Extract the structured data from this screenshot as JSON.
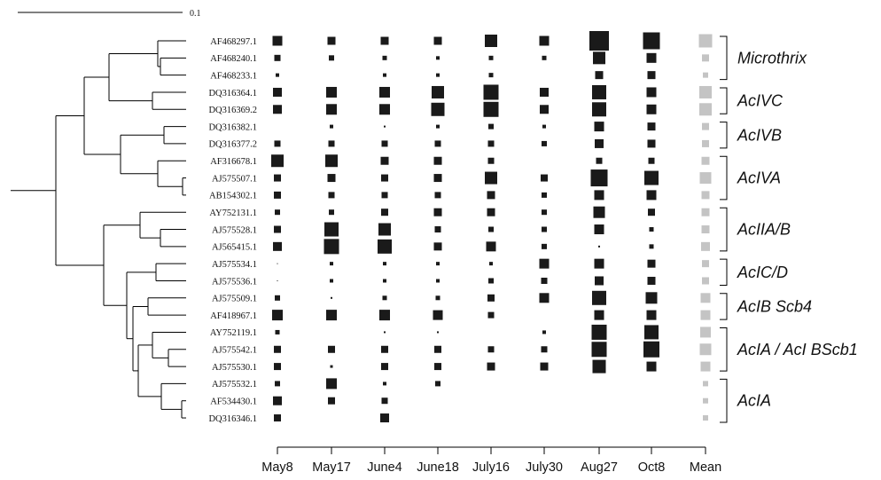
{
  "scale_bar": {
    "label": "0.1"
  },
  "chart_data": {
    "type": "bubble-matrix",
    "columns": [
      "May8",
      "May17",
      "June4",
      "June18",
      "July16",
      "July30",
      "Aug27",
      "Oct8",
      "Mean"
    ],
    "dark_color": "#1a1a1a",
    "mean_color": "#c4c4c4",
    "rows": [
      {
        "name": "AF468297.1",
        "values": [
          11,
          9,
          9,
          9,
          14,
          11,
          22,
          19,
          15
        ]
      },
      {
        "name": "AF468240.1",
        "values": [
          7,
          6,
          5,
          4,
          5,
          5,
          14,
          11,
          8
        ]
      },
      {
        "name": "AF468233.1",
        "values": [
          4,
          0,
          4,
          4,
          5,
          0,
          9,
          9,
          6
        ]
      },
      {
        "name": "DQ316364.1",
        "values": [
          10,
          12,
          12,
          14,
          17,
          10,
          16,
          11,
          14
        ]
      },
      {
        "name": "DQ316369.2",
        "values": [
          10,
          12,
          12,
          15,
          17,
          10,
          16,
          11,
          14
        ]
      },
      {
        "name": "DQ316382.1",
        "values": [
          0,
          4,
          2,
          4,
          6,
          4,
          11,
          9,
          8
        ]
      },
      {
        "name": "DQ316377.2",
        "values": [
          7,
          7,
          7,
          7,
          7,
          6,
          10,
          9,
          8
        ]
      },
      {
        "name": "AF316678.1",
        "values": [
          14,
          14,
          9,
          9,
          7,
          0,
          7,
          7,
          9
        ]
      },
      {
        "name": "AJ575507.1",
        "values": [
          8,
          9,
          8,
          9,
          14,
          8,
          19,
          16,
          13
        ]
      },
      {
        "name": "AB154302.1",
        "values": [
          8,
          7,
          7,
          7,
          9,
          6,
          11,
          11,
          9
        ]
      },
      {
        "name": "AY752131.1",
        "values": [
          6,
          6,
          8,
          9,
          9,
          6,
          13,
          8,
          9
        ]
      },
      {
        "name": "AJ575528.1",
        "values": [
          8,
          16,
          14,
          7,
          6,
          6,
          11,
          5,
          9
        ]
      },
      {
        "name": "AJ565415.1",
        "values": [
          10,
          17,
          16,
          9,
          11,
          6,
          2,
          5,
          10
        ]
      },
      {
        "name": "AJ575534.1",
        "values": [
          1,
          4,
          4,
          4,
          4,
          11,
          11,
          9,
          8
        ]
      },
      {
        "name": "AJ575536.1",
        "values": [
          1,
          4,
          4,
          4,
          6,
          7,
          10,
          9,
          8
        ]
      },
      {
        "name": "AJ575509.1",
        "values": [
          6,
          2,
          5,
          5,
          8,
          11,
          16,
          13,
          11
        ]
      },
      {
        "name": "AF418967.1",
        "values": [
          12,
          12,
          12,
          11,
          7,
          0,
          11,
          11,
          11
        ]
      },
      {
        "name": "AY752119.1",
        "values": [
          5,
          0,
          2,
          2,
          0,
          4,
          17,
          16,
          12
        ]
      },
      {
        "name": "AJ575542.1",
        "values": [
          8,
          8,
          8,
          8,
          7,
          7,
          17,
          18,
          13
        ]
      },
      {
        "name": "AJ575530.1",
        "values": [
          8,
          3,
          8,
          8,
          9,
          9,
          15,
          11,
          11
        ]
      },
      {
        "name": "AJ575532.1",
        "values": [
          6,
          12,
          4,
          6,
          0,
          0,
          0,
          0,
          6
        ]
      },
      {
        "name": "AF534430.1",
        "values": [
          10,
          8,
          7,
          0,
          0,
          0,
          0,
          0,
          6
        ]
      },
      {
        "name": "DQ316346.1",
        "values": [
          8,
          0,
          10,
          0,
          0,
          0,
          0,
          0,
          6
        ]
      }
    ],
    "clades": [
      {
        "label": "Microthrix",
        "first": 0,
        "last": 2
      },
      {
        "label": "AcIVC",
        "first": 3,
        "last": 4
      },
      {
        "label": "AcIVB",
        "first": 5,
        "last": 6
      },
      {
        "label": "AcIVA",
        "first": 7,
        "last": 9
      },
      {
        "label": "AcIIA/B",
        "first": 10,
        "last": 12
      },
      {
        "label": "AcIC/D",
        "first": 13,
        "last": 14
      },
      {
        "label": "AcIB Scb4",
        "first": 15,
        "last": 16
      },
      {
        "label": "AcIA / AcI BScb1",
        "first": 17,
        "last": 19
      },
      {
        "label": "AcIA",
        "first": 20,
        "last": 22
      }
    ]
  }
}
